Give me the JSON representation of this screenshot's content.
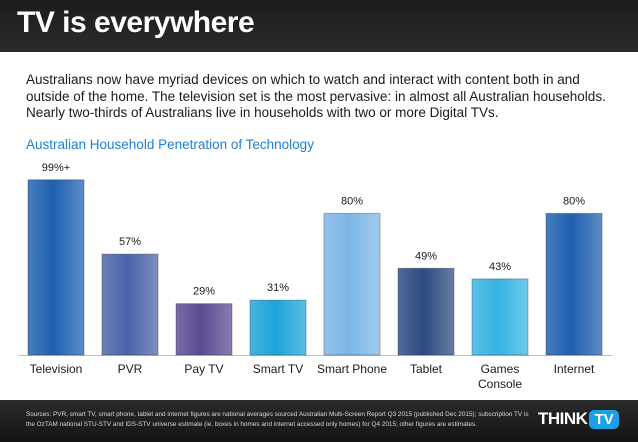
{
  "header": {
    "title": "TV is everywhere"
  },
  "description": [
    "Australians now have myriad devices on which to watch and interact with content both in and",
    "outside of the home. The television set is the most pervasive: in almost all Australian households.",
    "Nearly two-thirds of Australians live in households with two or more Digital TVs."
  ],
  "chart_data": {
    "type": "bar",
    "title": "Australian Household Penetration of Technology",
    "categories": [
      "Television",
      "PVR",
      "Pay TV",
      "Smart TV",
      "Smart Phone",
      "Tablet",
      "Games Console",
      "Internet"
    ],
    "category_lines": [
      [
        "Television"
      ],
      [
        "PVR"
      ],
      [
        "Pay TV"
      ],
      [
        "Smart TV"
      ],
      [
        "Smart Phone"
      ],
      [
        "Tablet"
      ],
      [
        "Games",
        "Console"
      ],
      [
        "Internet"
      ]
    ],
    "values": [
      99,
      57,
      29,
      31,
      80,
      49,
      43,
      80
    ],
    "data_labels": [
      "99%+",
      "57%",
      "29%",
      "31%",
      "80%",
      "49%",
      "43%",
      "80%"
    ],
    "colors": [
      "#1f5fb0",
      "#4a62a8",
      "#5c4a92",
      "#1ba5d8",
      "#7cb6e6",
      "#2c4a80",
      "#35b4e2",
      "#1f5fb0"
    ],
    "ylim": [
      0,
      100
    ],
    "grid": false,
    "xlabel": "",
    "ylabel": ""
  },
  "footer": {
    "sources": "Sources: PVR, smart TV, smart phone, tablet and internet figures are national averages sourced Australian Multi-Screen Report Q3 2015 (published Dec 2015); subscription TV is the OzTAM national STU-STV and IDS-STV universe estimate (ie. boxes in homes and internet accessed only homes) for Q4 2015; other figures are estimates.",
    "logo_think": "THINK",
    "logo_tv": "TV"
  }
}
